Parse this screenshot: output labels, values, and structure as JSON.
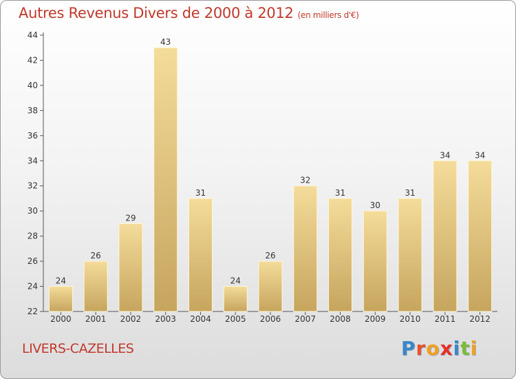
{
  "title": "Autres Revenus Divers de 2000 à 2012",
  "unit": "(en milliers d'€)",
  "city": "LIVERS-CAZELLES",
  "logo": {
    "text": "Proxiti",
    "letters": [
      {
        "ch": "P",
        "color": "#3a86c8"
      },
      {
        "ch": "r",
        "color": "#e8502a"
      },
      {
        "ch": "o",
        "color": "#f0a020"
      },
      {
        "ch": "x",
        "color": "#e8302a"
      },
      {
        "ch": "i",
        "color": "#3a86c8"
      },
      {
        "ch": "t",
        "color": "#7dbb3a"
      },
      {
        "ch": "i",
        "color": "#f0a020"
      }
    ]
  },
  "colors": {
    "bar_light": "#f4dc9a",
    "bar_dark": "#c6a55e",
    "text": "#c0392b"
  },
  "chart_data": {
    "type": "bar",
    "categories": [
      "2000",
      "2001",
      "2002",
      "2003",
      "2004",
      "2005",
      "2006",
      "2007",
      "2008",
      "2009",
      "2010",
      "2011",
      "2012"
    ],
    "values": [
      24,
      26,
      29,
      43,
      31,
      24,
      26,
      32,
      31,
      30,
      31,
      34,
      34
    ],
    "ylim": [
      22,
      44
    ],
    "yticks": [
      22,
      24,
      26,
      28,
      30,
      32,
      34,
      36,
      38,
      40,
      42,
      44
    ],
    "grid": false,
    "data_labels": true
  }
}
